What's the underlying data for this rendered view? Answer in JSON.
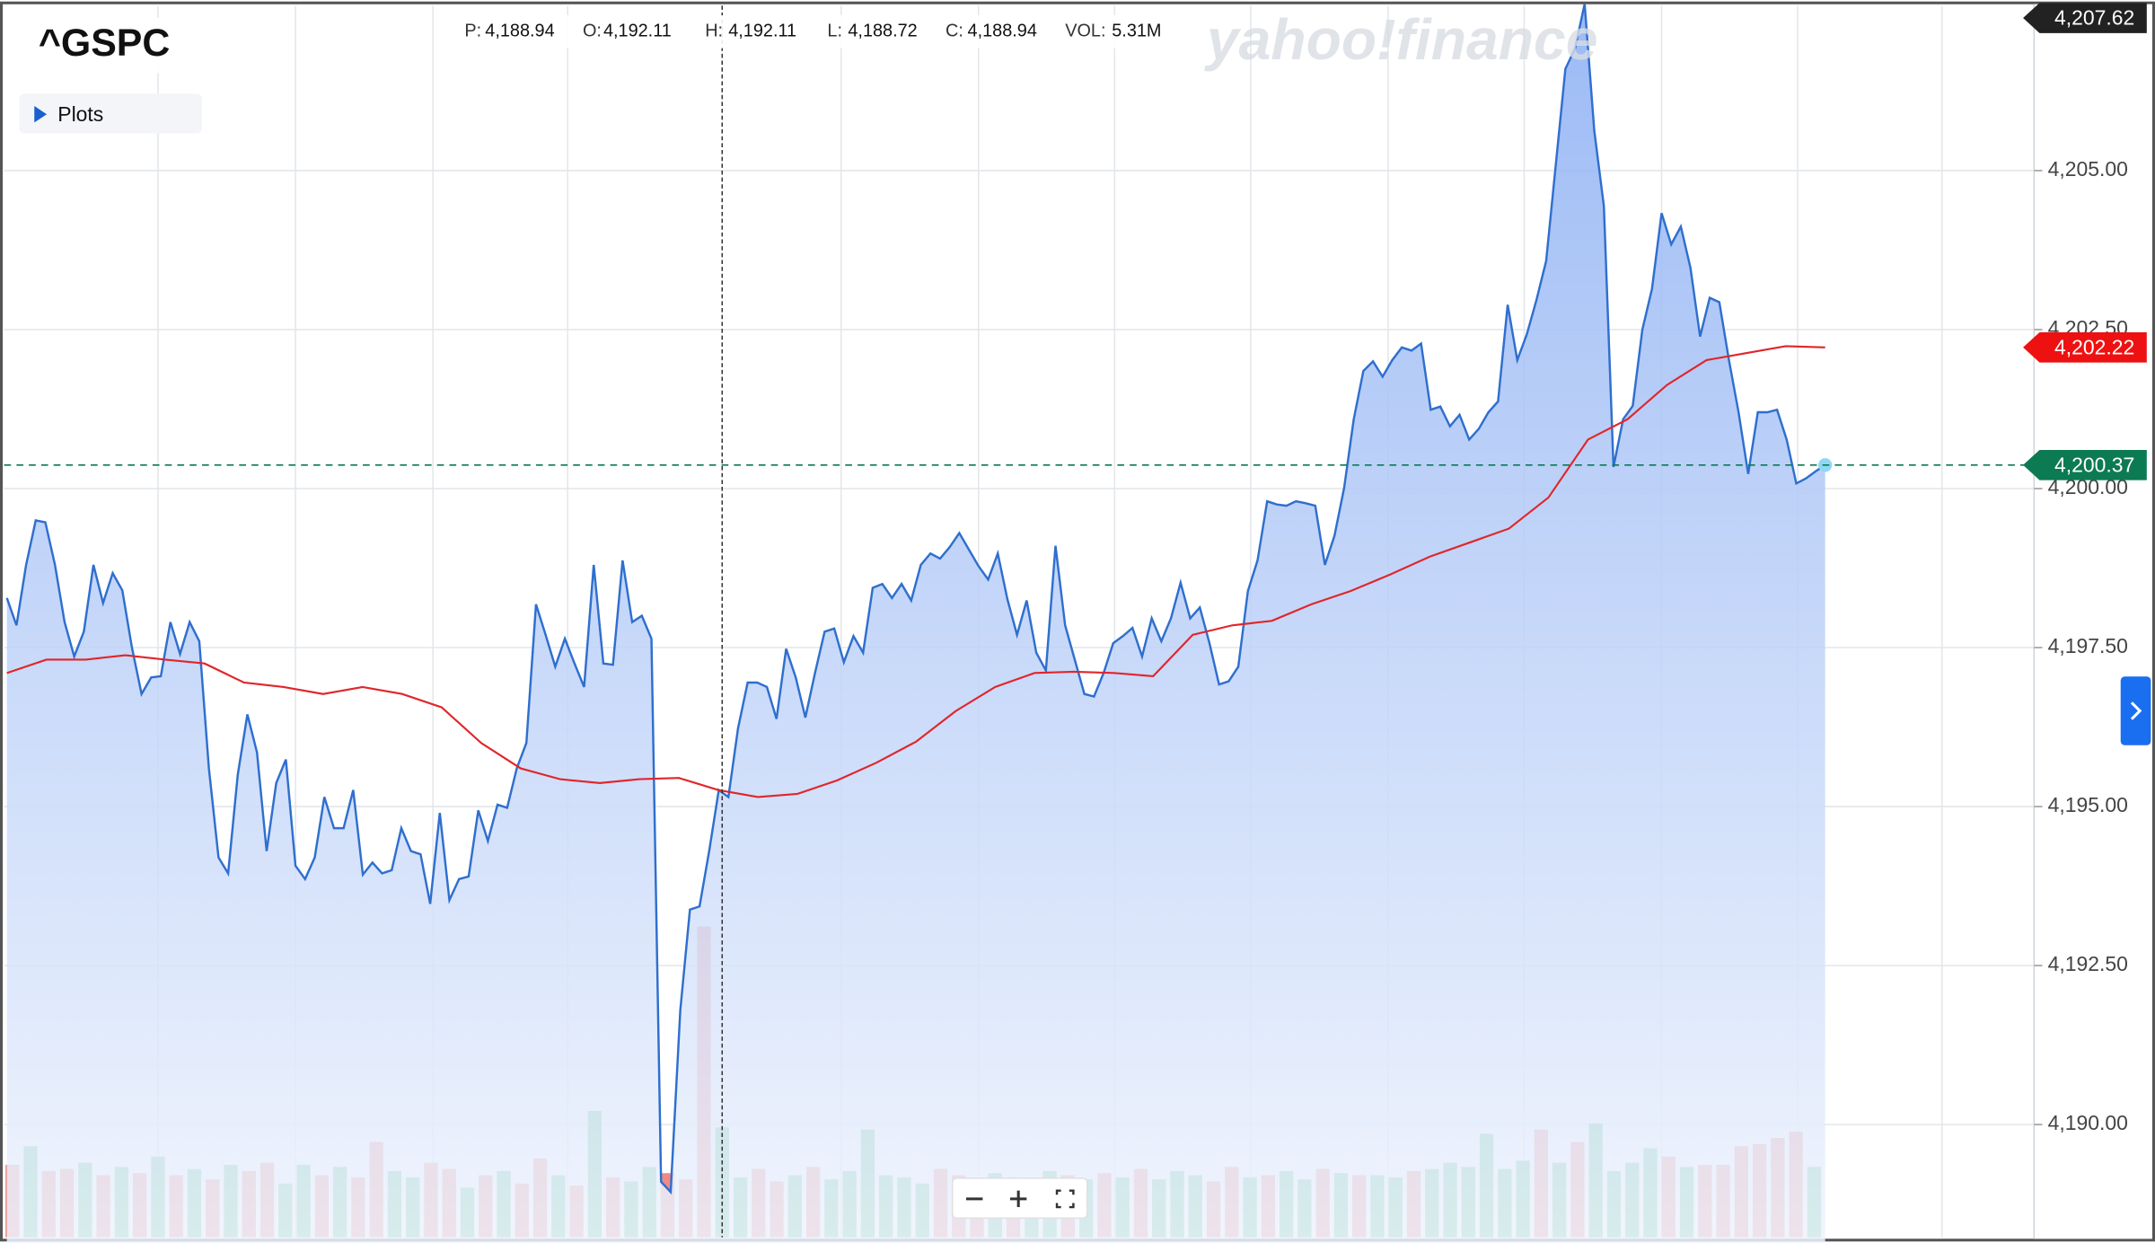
{
  "header": {
    "symbol": "^GSPC",
    "plots": "Plots",
    "watermark": "yahoo!finance",
    "quote": [
      {
        "label": "P:",
        "value": "4,188.94"
      },
      {
        "label": "O:",
        "value": "4,192.11"
      },
      {
        "label": "H:",
        "value": "4,192.11"
      },
      {
        "label": "L:",
        "value": "4,188.72"
      },
      {
        "label": "C:",
        "value": "4,188.94"
      },
      {
        "label": "VOL:",
        "value": "5.31M"
      }
    ]
  },
  "chart_data": {
    "type": "line",
    "ylim": [
      4188.14,
      4207.68
    ],
    "yticks": [
      {
        "value": 4190,
        "label": "4,190.00"
      },
      {
        "value": 4192.5,
        "label": "4,192.50"
      },
      {
        "value": 4195,
        "label": "4,195.00"
      },
      {
        "value": 4197.5,
        "label": "4,197.50"
      },
      {
        "value": 4200,
        "label": "4,200.00"
      },
      {
        "value": 4202.5,
        "label": "4,202.50"
      },
      {
        "value": 4205,
        "label": "4,205.00"
      }
    ],
    "grid": true,
    "series": [
      {
        "color": "#2f6fce",
        "values": [
          4198.28,
          4197.85,
          4198.8,
          4199.5,
          4199.47,
          4198.8,
          4197.9,
          4197.36,
          4197.75,
          4198.8,
          4198.2,
          4198.67,
          4198.4,
          4197.5,
          4196.77,
          4197.03,
          4197.05,
          4197.9,
          4197.4,
          4197.9,
          4197.6,
          4195.6,
          4194.2,
          4193.95,
          4195.5,
          4196.45,
          4195.85,
          4194.3,
          4195.37,
          4195.74,
          4194.07,
          4193.86,
          4194.2,
          4195.15,
          4194.66,
          4194.66,
          4195.26,
          4193.93,
          4194.12,
          4193.95,
          4194.0,
          4194.66,
          4194.3,
          4194.25,
          4193.47,
          4194.9,
          4193.53,
          4193.86,
          4193.9,
          4194.94,
          4194.46,
          4195.03,
          4194.98,
          4195.6,
          4196.0,
          4198.18,
          4197.7,
          4197.2,
          4197.64,
          4197.25,
          4196.88,
          4198.8,
          4197.25,
          4197.23,
          4198.87,
          4197.9,
          4198.0,
          4197.64,
          4189.1,
          4188.94,
          4191.8,
          4193.38,
          4193.43,
          4194.3,
          4195.26,
          4195.15,
          4196.23,
          4196.95,
          4196.95,
          4196.88,
          4196.38,
          4197.48,
          4197.03,
          4196.4,
          4197.1,
          4197.75,
          4197.8,
          4197.27,
          4197.68,
          4197.42,
          4198.44,
          4198.5,
          4198.28,
          4198.5,
          4198.24,
          4198.8,
          4198.98,
          4198.9,
          4199.08,
          4199.3,
          4199.04,
          4198.78,
          4198.57,
          4198.98,
          4198.26,
          4197.7,
          4198.24,
          4197.42,
          4197.14,
          4199.1,
          4197.85,
          4197.31,
          4196.77,
          4196.73,
          4197.1,
          4197.57,
          4197.68,
          4197.81,
          4197.36,
          4197.96,
          4197.6,
          4197.96,
          4198.52,
          4197.96,
          4198.13,
          4197.57,
          4196.92,
          4196.97,
          4197.2,
          4198.39,
          4198.87,
          4199.8,
          4199.75,
          4199.73,
          4199.8,
          4199.77,
          4199.73,
          4198.8,
          4199.26,
          4200.01,
          4201.09,
          4201.85,
          4202.0,
          4201.76,
          4202.02,
          4202.22,
          4202.17,
          4202.28,
          4201.24,
          4201.29,
          4200.98,
          4201.16,
          4200.77,
          4200.94,
          4201.2,
          4201.37,
          4202.89,
          4202.02,
          4202.43,
          4202.97,
          4203.58,
          4205.09,
          4206.6,
          4206.92,
          4207.62,
          4205.63,
          4204.44,
          4200.34,
          4201.09,
          4201.3,
          4202.5,
          4203.14,
          4204.33,
          4203.84,
          4204.12,
          4203.47,
          4202.39,
          4203.0,
          4202.93,
          4202.02,
          4201.2,
          4200.23,
          4201.2,
          4201.2,
          4201.24,
          4200.77,
          4200.08,
          4200.16,
          4200.27,
          4200.37
        ]
      },
      {
        "color": "#e0262b",
        "values": [
          4197.1,
          4197.31,
          4197.31,
          4197.38,
          4197.31,
          4197.25,
          4196.95,
          4196.88,
          4196.77,
          4196.88,
          4196.77,
          4196.56,
          4196.0,
          4195.6,
          4195.43,
          4195.37,
          4195.43,
          4195.45,
          4195.26,
          4195.15,
          4195.2,
          4195.41,
          4195.69,
          4196.02,
          4196.5,
          4196.88,
          4197.1,
          4197.12,
          4197.1,
          4197.05,
          4197.7,
          4197.85,
          4197.92,
          4198.18,
          4198.39,
          4198.65,
          4198.93,
          4199.15,
          4199.37,
          4199.86,
          4200.77,
          4201.09,
          4201.63,
          4202.02,
          4202.13,
          4202.24,
          4202.22
        ]
      }
    ],
    "volume": {
      "values": [
        3.5,
        4.4,
        3.2,
        3.3,
        3.6,
        3.0,
        3.4,
        3.1,
        3.9,
        3.0,
        3.3,
        2.8,
        3.5,
        3.2,
        3.6,
        2.6,
        3.5,
        3.0,
        3.4,
        2.9,
        4.6,
        3.2,
        2.9,
        3.6,
        3.3,
        2.4,
        3.0,
        3.2,
        2.6,
        3.8,
        3.0,
        2.5,
        6.1,
        2.9,
        2.7,
        3.4,
        3.1,
        2.8,
        15.0,
        5.31,
        2.9,
        3.3,
        2.7,
        3.0,
        3.4,
        2.8,
        3.2,
        5.2,
        3.0,
        2.9,
        2.6,
        3.3,
        3.0,
        2.7,
        3.1,
        2.9,
        2.4,
        3.2,
        3.0,
        2.8,
        3.1,
        2.9,
        3.3,
        2.8,
        3.2,
        3.0,
        2.7,
        3.4,
        2.9,
        3.0,
        3.2,
        2.8,
        3.3,
        3.1,
        3.0,
        3.0,
        2.9,
        3.2,
        3.3,
        3.6,
        3.4,
        5.0,
        3.3,
        3.7,
        5.2,
        3.6,
        4.6,
        5.5,
        3.2,
        3.6,
        4.3,
        3.9,
        3.4,
        3.5,
        3.5,
        4.4,
        4.5,
        4.8,
        5.1,
        3.4
      ],
      "colors": [
        "#ef8a85",
        "#5cc48c",
        "#ef8a85",
        "#ef8a85",
        "#5cc48c",
        "#ef8a85",
        "#5cc48c",
        "#ef8a85",
        "#5cc48c",
        "#ef8a85",
        "#5cc48c",
        "#ef8a85",
        "#5cc48c",
        "#ef8a85",
        "#ef8a85",
        "#5cc48c",
        "#5cc48c",
        "#ef8a85",
        "#5cc48c",
        "#ef8a85",
        "#ef8a85",
        "#5cc48c",
        "#5cc48c",
        "#ef8a85",
        "#ef8a85",
        "#5cc48c",
        "#ef8a85",
        "#5cc48c",
        "#ef8a85",
        "#ef8a85",
        "#5cc48c",
        "#ef8a85",
        "#5cc48c",
        "#ef8a85",
        "#5cc48c",
        "#5cc48c",
        "#ef8a85",
        "#ef8a85",
        "#ef8a85",
        "#5cc48c",
        "#5cc48c",
        "#ef8a85",
        "#ef8a85",
        "#5cc48c",
        "#ef8a85",
        "#5cc48c",
        "#5cc48c",
        "#5cc48c",
        "#5cc48c",
        "#5cc48c",
        "#5cc48c",
        "#ef8a85",
        "#ef8a85",
        "#ef8a85",
        "#5cc48c",
        "#ef8a85",
        "#5cc48c",
        "#5cc48c",
        "#ef8a85",
        "#5cc48c",
        "#ef8a85",
        "#5cc48c",
        "#ef8a85",
        "#5cc48c",
        "#5cc48c",
        "#5cc48c",
        "#ef8a85",
        "#ef8a85",
        "#5cc48c",
        "#ef8a85",
        "#5cc48c",
        "#5cc48c",
        "#ef8a85",
        "#5cc48c",
        "#ef8a85",
        "#5cc48c",
        "#5cc48c",
        "#ef8a85",
        "#5cc48c",
        "#5cc48c",
        "#5cc48c",
        "#5cc48c",
        "#5cc48c",
        "#5cc48c",
        "#ef8a85",
        "#5cc48c",
        "#ef8a85",
        "#5cc48c",
        "#5cc48c",
        "#5cc48c",
        "#5cc48c",
        "#ef8a85",
        "#5cc48c",
        "#ef8a85",
        "#ef8a85",
        "#ef8a85",
        "#ef8a85",
        "#ef8a85",
        "#ef8a85",
        "#5cc48c"
      ]
    },
    "markers": [
      {
        "value": 4207.62,
        "label": "4,207.62",
        "color": "#222222"
      },
      {
        "value": 4202.22,
        "label": "4,202.22",
        "color": "#ee1111"
      },
      {
        "value": 4200.37,
        "label": "4,200.37",
        "color": "#0c7a53"
      }
    ]
  }
}
